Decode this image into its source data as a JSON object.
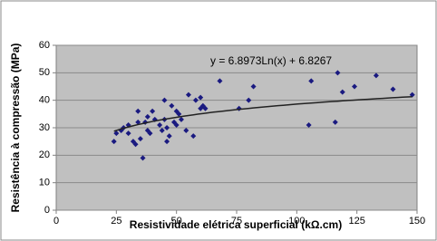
{
  "chart_data": {
    "type": "scatter",
    "x_label": "Resistividade elétrica superficial (kΩ.cm)",
    "y_label": "Resistência à compressão (MPa)",
    "series": [
      {
        "color": "#1a1a80",
        "x": [
          24,
          25,
          27,
          28,
          30,
          30,
          32,
          33,
          34,
          34,
          35,
          36,
          37,
          38,
          38,
          39,
          40,
          41,
          43,
          44,
          45,
          45,
          46,
          46,
          47,
          48,
          49,
          50,
          50,
          51,
          52,
          54,
          55,
          57,
          58,
          60,
          60,
          61,
          62,
          68,
          76,
          80,
          82,
          105,
          106,
          116,
          117,
          119,
          124,
          133,
          140,
          148
        ],
        "values": [
          25,
          28,
          29,
          30,
          28,
          31,
          25,
          24,
          32,
          36,
          26,
          19,
          32,
          34,
          29,
          28,
          36,
          33,
          31,
          29,
          40,
          33,
          25,
          30,
          27,
          38,
          32,
          31,
          36,
          35,
          33,
          29,
          42,
          27,
          40,
          41,
          37,
          38,
          37,
          47,
          37,
          40,
          45,
          31,
          47,
          32,
          50,
          43,
          45,
          49,
          44,
          42
        ]
      }
    ],
    "trendline": {
      "a": 6.8973,
      "b": 6.8267,
      "label": "y = 6.8973Ln(x) + 6.8267",
      "color": "#222222"
    },
    "xlim": [
      0,
      150
    ],
    "xticks": [
      0,
      25,
      50,
      75,
      100,
      125,
      150
    ],
    "ylim": [
      0,
      60
    ],
    "yticks": [
      0,
      10,
      20,
      30,
      40,
      50,
      60
    ],
    "grid": true,
    "plot_background": "#c0c0c0"
  }
}
